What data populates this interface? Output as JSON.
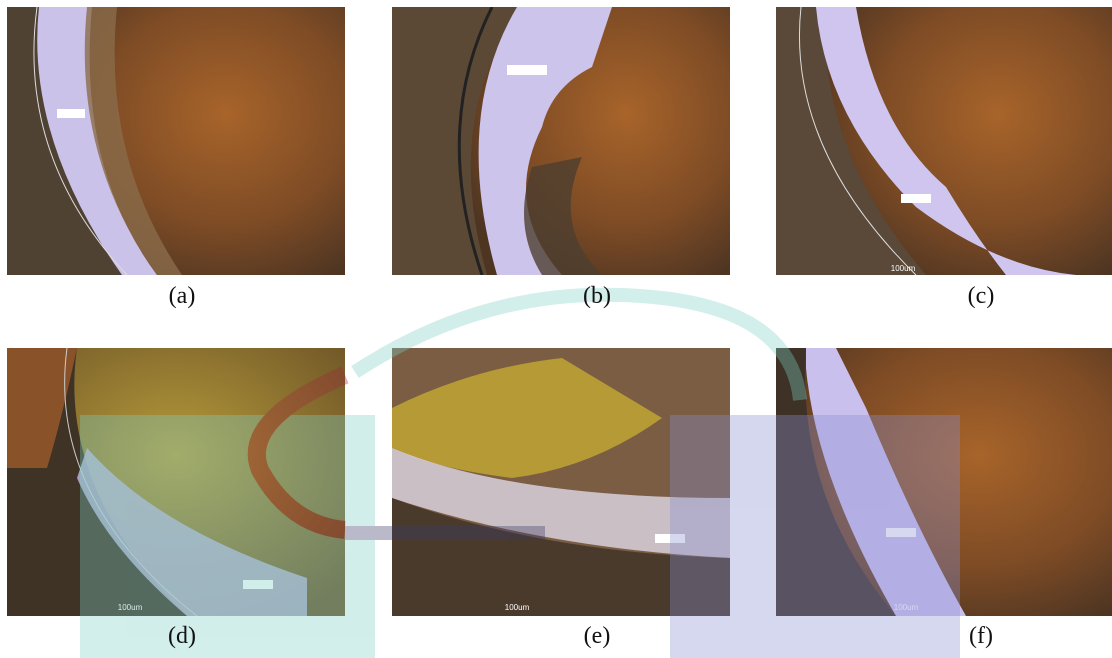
{
  "panels": [
    {
      "label": "(a)"
    },
    {
      "label": "(b)"
    },
    {
      "label": "(c)",
      "scale_bar": "100um"
    },
    {
      "label": "(d)",
      "scale_bar": "100um"
    },
    {
      "label": "(e)",
      "scale_bar": "100um"
    },
    {
      "label": "(f)",
      "scale_bar": "100um"
    }
  ]
}
